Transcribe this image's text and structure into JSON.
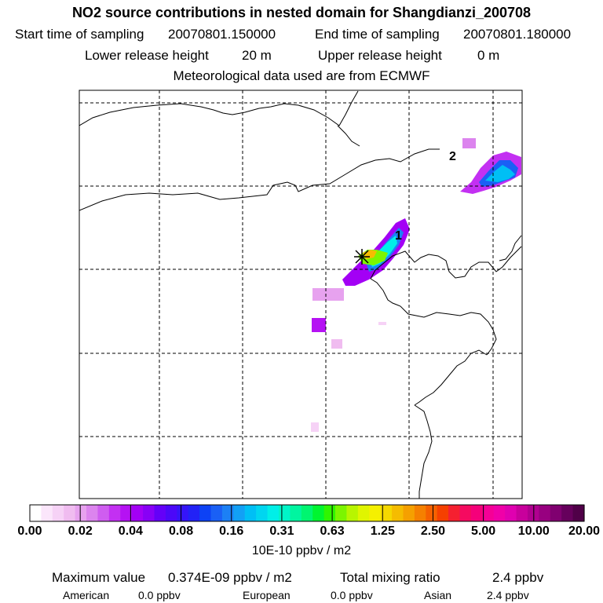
{
  "header": {
    "title": "NO2 source contributions in nested domain for Shangdianzi_200708",
    "start_label": "Start time of sampling",
    "start_value": "20070801.150000",
    "end_label": "End time of sampling",
    "end_value": "20070801.180000",
    "lower_label": "Lower release height",
    "lower_value": "20 m",
    "upper_label": "Upper release height",
    "upper_value": "0 m",
    "met": "Meteorological data used are from ECMWF"
  },
  "chart_data": {
    "type": "heatmap",
    "title": "NO2 source contributions in nested domain for Shangdianzi_200708",
    "site_marker": "Shangdianzi",
    "cluster_labels": [
      "1",
      "2"
    ],
    "colorbar": {
      "tick_labels": [
        "0.00",
        "0.02",
        "0.04",
        "0.08",
        "0.16",
        "0.31",
        "0.63",
        "1.25",
        "2.50",
        "5.00",
        "10.00",
        "20.00"
      ],
      "units": "10E-10 ppbv / m2",
      "colors": [
        "#ffffff",
        "#fbe6fb",
        "#f6d2f6",
        "#f0bcf0",
        "#e7a2ef",
        "#dc84ee",
        "#cf5df0",
        "#c330f2",
        "#b512f3",
        "#a300f5",
        "#8800f6",
        "#6400f8",
        "#4b08f8",
        "#3514f8",
        "#2222f6",
        "#0d42f5",
        "#1a60f5",
        "#1c80f5",
        "#12a0f5",
        "#00bff5",
        "#00d6f0",
        "#00efe8",
        "#00f5c8",
        "#00f5a0",
        "#00f570",
        "#00f530",
        "#30f500",
        "#7cf500",
        "#b8f500",
        "#e0f500",
        "#f5f000",
        "#f5d800",
        "#f5bc00",
        "#f5a000",
        "#f58000",
        "#f56000",
        "#f54000",
        "#f52030",
        "#f50a60",
        "#f5007a",
        "#f50096",
        "#f000a8",
        "#e000b0",
        "#c8009c",
        "#b00090",
        "#980080",
        "#800070",
        "#66005c",
        "#500048"
      ]
    },
    "max_value": "0.374E-09 ppbv / m2",
    "total_mixing_ratio": "2.4 ppbv",
    "regions": [
      {
        "name": "American",
        "value": "0.0 ppbv"
      },
      {
        "name": "European",
        "value": "0.0 ppbv"
      },
      {
        "name": "Asian",
        "value": "2.4 ppbv"
      }
    ]
  },
  "footer": {
    "max_label": "Maximum value",
    "max_value": "0.374E-09 ppbv / m2",
    "total_label": "Total mixing ratio",
    "total_value": "2.4 ppbv",
    "american_label": "American",
    "american_value": "0.0 ppbv",
    "european_label": "European",
    "european_value": "0.0 ppbv",
    "asian_label": "Asian",
    "asian_value": "2.4 ppbv"
  }
}
